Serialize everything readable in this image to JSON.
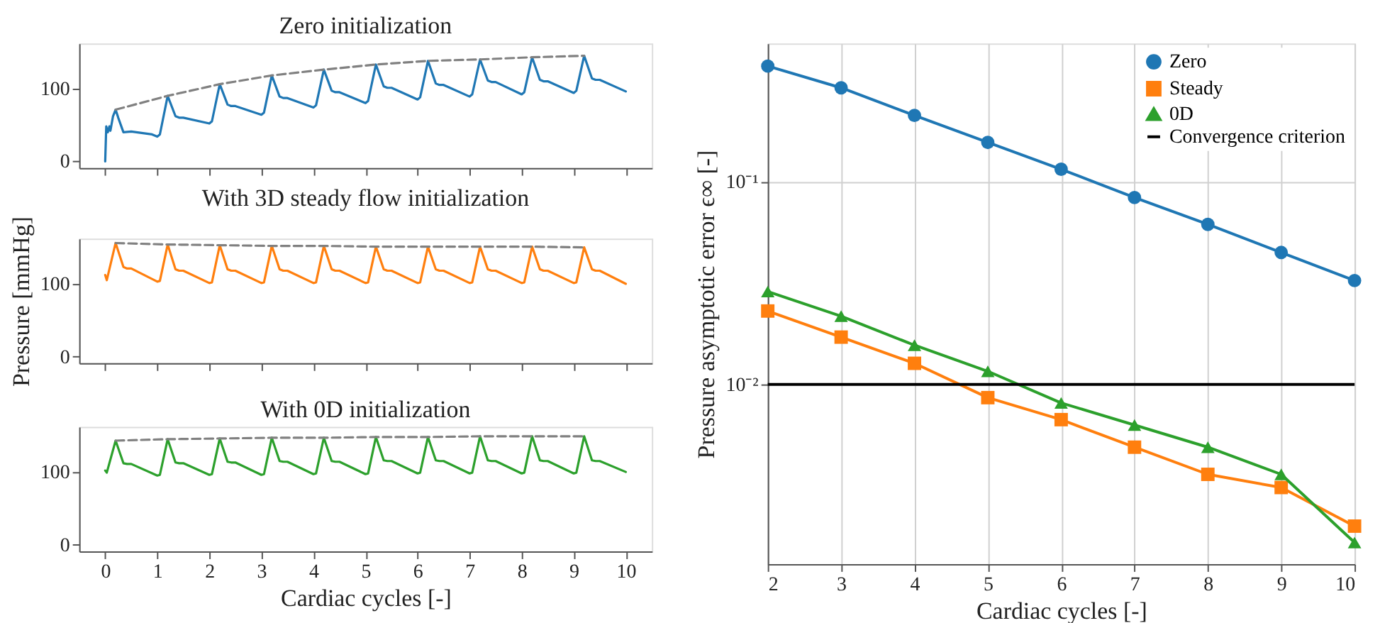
{
  "chart_data": [
    {
      "type": "line",
      "title": "Zero initialization",
      "xlim": [
        -0.5,
        10.5
      ],
      "xticks": [
        0,
        1,
        2,
        3,
        4,
        5,
        6,
        7,
        8,
        9,
        10
      ],
      "ylim": [
        -9,
        162
      ],
      "yticks": [
        0,
        100
      ],
      "grid": false,
      "tick_labels": "y",
      "series": [
        {
          "color": "#1f77b4",
          "line_style": "solid",
          "x": [
            0,
            0.02,
            0.05,
            0.08,
            0.1,
            0.15,
            0.2,
            0.25,
            0.35,
            0.5,
            0.9,
            1,
            1.05,
            1.2,
            1.35,
            1.42,
            1.5,
            2,
            2.05,
            2.2,
            2.35,
            2.42,
            2.5,
            3,
            3.05,
            3.2,
            3.35,
            3.42,
            3.5,
            4,
            4.05,
            4.2,
            4.35,
            4.42,
            4.5,
            5,
            5.05,
            5.2,
            5.35,
            5.42,
            5.5,
            6,
            6.05,
            6.2,
            6.35,
            6.42,
            6.5,
            7,
            7.05,
            7.2,
            7.35,
            7.42,
            7.5,
            8,
            8.05,
            8.2,
            8.35,
            8.42,
            8.5,
            9,
            9.05,
            9.2,
            9.35,
            9.42,
            9.5,
            10
          ],
          "values": [
            0,
            48,
            40,
            48,
            42,
            62,
            71,
            60,
            40,
            41,
            37,
            34,
            37,
            90,
            62,
            60,
            60,
            52,
            55,
            106,
            78,
            76,
            76,
            64,
            67,
            118,
            89,
            87,
            87,
            74,
            77,
            126,
            97,
            95,
            95,
            80,
            83,
            133,
            103,
            101,
            101,
            85,
            88,
            138,
            107,
            105,
            105,
            89,
            92,
            140,
            111,
            109,
            109,
            92,
            95,
            143,
            112,
            110,
            110,
            94,
            97,
            145,
            114,
            112,
            112,
            96
          ]
        },
        {
          "color": "#808080",
          "line_style": "dashed",
          "x": [
            0.2,
            1.2,
            2.2,
            3.2,
            4.2,
            5.2,
            6.2,
            7.2,
            8.2,
            9.2
          ],
          "values": [
            71,
            90,
            106,
            118,
            126,
            133,
            138,
            140,
            143,
            145
          ]
        }
      ]
    },
    {
      "type": "line",
      "title": "With 3D steady flow initialization",
      "ylabel": "Pressure [mmHg]",
      "xlim": [
        -0.5,
        10.5
      ],
      "xticks": [
        0,
        1,
        2,
        3,
        4,
        5,
        6,
        7,
        8,
        9,
        10
      ],
      "ylim": [
        -9,
        162
      ],
      "yticks": [
        0,
        100
      ],
      "grid": false,
      "tick_labels": "y",
      "series": [
        {
          "color": "#ff7f0e",
          "line_style": "solid",
          "x": [
            0,
            0.03,
            0.2,
            0.35,
            0.42,
            0.5,
            1,
            1.05,
            1.2,
            1.35,
            1.42,
            1.5,
            2,
            2.05,
            2.2,
            2.35,
            2.42,
            2.5,
            3,
            3.05,
            3.2,
            3.35,
            3.42,
            3.5,
            4,
            4.05,
            4.2,
            4.35,
            4.42,
            4.5,
            5,
            5.05,
            5.2,
            5.35,
            5.42,
            5.5,
            6,
            6.05,
            6.2,
            6.35,
            6.42,
            6.5,
            7,
            7.05,
            7.2,
            7.35,
            7.42,
            7.5,
            8,
            8.05,
            8.2,
            8.35,
            8.42,
            8.5,
            9,
            9.05,
            9.2,
            9.35,
            9.42,
            9.5,
            10
          ],
          "values": [
            112,
            105,
            156,
            123,
            121,
            121,
            103,
            104,
            154,
            120,
            118,
            118,
            101,
            102,
            153,
            120,
            118,
            118,
            101,
            102,
            152,
            120,
            118,
            118,
            101,
            102,
            152,
            120,
            118,
            118,
            101,
            102,
            151,
            120,
            118,
            118,
            101,
            102,
            151,
            120,
            118,
            118,
            101,
            102,
            151,
            120,
            118,
            118,
            101,
            102,
            151,
            120,
            118,
            118,
            101,
            102,
            150,
            120,
            118,
            118,
            100
          ]
        },
        {
          "color": "#808080",
          "line_style": "dashed",
          "x": [
            0.2,
            1.2,
            2.2,
            3.2,
            4.2,
            5.2,
            6.2,
            7.2,
            8.2,
            9.2
          ],
          "values": [
            156,
            154,
            153,
            152,
            152,
            151,
            151,
            151,
            151,
            150
          ]
        }
      ]
    },
    {
      "type": "line",
      "title": "With 0D initialization",
      "xlabel": "Cardiac cycles [-]",
      "xlim": [
        -0.5,
        10.5
      ],
      "xticks": [
        0,
        1,
        2,
        3,
        4,
        5,
        6,
        7,
        8,
        9,
        10
      ],
      "ylim": [
        -9,
        162
      ],
      "yticks": [
        0,
        100
      ],
      "grid": false,
      "series": [
        {
          "color": "#2ca02c",
          "line_style": "solid",
          "x": [
            0,
            0.03,
            0.2,
            0.35,
            0.42,
            0.5,
            1,
            1.05,
            1.2,
            1.35,
            1.42,
            1.5,
            2,
            2.05,
            2.2,
            2.35,
            2.42,
            2.5,
            3,
            3.05,
            3.2,
            3.35,
            3.42,
            3.5,
            4,
            4.05,
            4.2,
            4.35,
            4.42,
            4.5,
            5,
            5.05,
            5.2,
            5.35,
            5.42,
            5.5,
            6,
            6.05,
            6.2,
            6.35,
            6.42,
            6.5,
            7,
            7.05,
            7.2,
            7.35,
            7.42,
            7.5,
            8,
            8.05,
            8.2,
            8.35,
            8.42,
            8.5,
            9,
            9.05,
            9.2,
            9.35,
            9.42,
            9.5,
            10
          ],
          "values": [
            102,
            99,
            143,
            112,
            111,
            111,
            95,
            96,
            145,
            113,
            112,
            112,
            96,
            97,
            146,
            114,
            113,
            113,
            96,
            97,
            147,
            115,
            114,
            114,
            97,
            98,
            147,
            115,
            114,
            114,
            97,
            98,
            148,
            116,
            115,
            115,
            98,
            99,
            148,
            116,
            115,
            115,
            98,
            99,
            149,
            116,
            115,
            115,
            98,
            99,
            149,
            116,
            115,
            115,
            98,
            99,
            149,
            116,
            115,
            115,
            100
          ]
        },
        {
          "color": "#808080",
          "line_style": "dashed",
          "x": [
            0.2,
            1.2,
            2.2,
            3.2,
            4.2,
            5.2,
            6.2,
            7.2,
            8.2,
            9.2
          ],
          "values": [
            143,
            145,
            146,
            147,
            147,
            148,
            148,
            149,
            149,
            149
          ]
        }
      ]
    },
    {
      "type": "line",
      "xlabel": "Cardiac cycles [-]",
      "ylabel": "Pressure asymptotic error ϵ∞ [-]",
      "x": [
        2,
        3,
        4,
        5,
        6,
        7,
        8,
        9,
        10
      ],
      "xlim": [
        2,
        10
      ],
      "xticks": [
        2,
        3,
        4,
        5,
        6,
        7,
        8,
        9,
        10
      ],
      "ylim": [
        0.0013,
        0.48
      ],
      "yticks": [
        {
          "value": 0.1,
          "label": "10⁻¹"
        },
        {
          "value": 0.01,
          "label": "10⁻²"
        }
      ],
      "log": true,
      "grid": true,
      "legend": "top right",
      "series": [
        {
          "name": "Zero",
          "color": "#1f77b4",
          "marker": "circle",
          "values": [
            0.371,
            0.29,
            0.212,
            0.156,
            0.115,
            0.0834,
            0.0615,
            0.0447,
            0.0325
          ]
        },
        {
          "name": "Steady",
          "color": "#ff7f0e",
          "marker": "square",
          "values": [
            0.023,
            0.0171,
            0.0127,
            0.0086,
            0.0067,
            0.0049,
            0.0036,
            0.0031,
            0.002
          ]
        },
        {
          "name": "0D",
          "color": "#2ca02c",
          "marker": "triangle",
          "values": [
            0.0287,
            0.0217,
            0.0156,
            0.0116,
            0.0081,
            0.0063,
            0.0049,
            0.0036,
            0.00166
          ]
        }
      ],
      "ref_lines": [
        {
          "axis": "y",
          "value": 0.01,
          "label": "Convergence criterion",
          "color": "#000000"
        }
      ]
    }
  ]
}
